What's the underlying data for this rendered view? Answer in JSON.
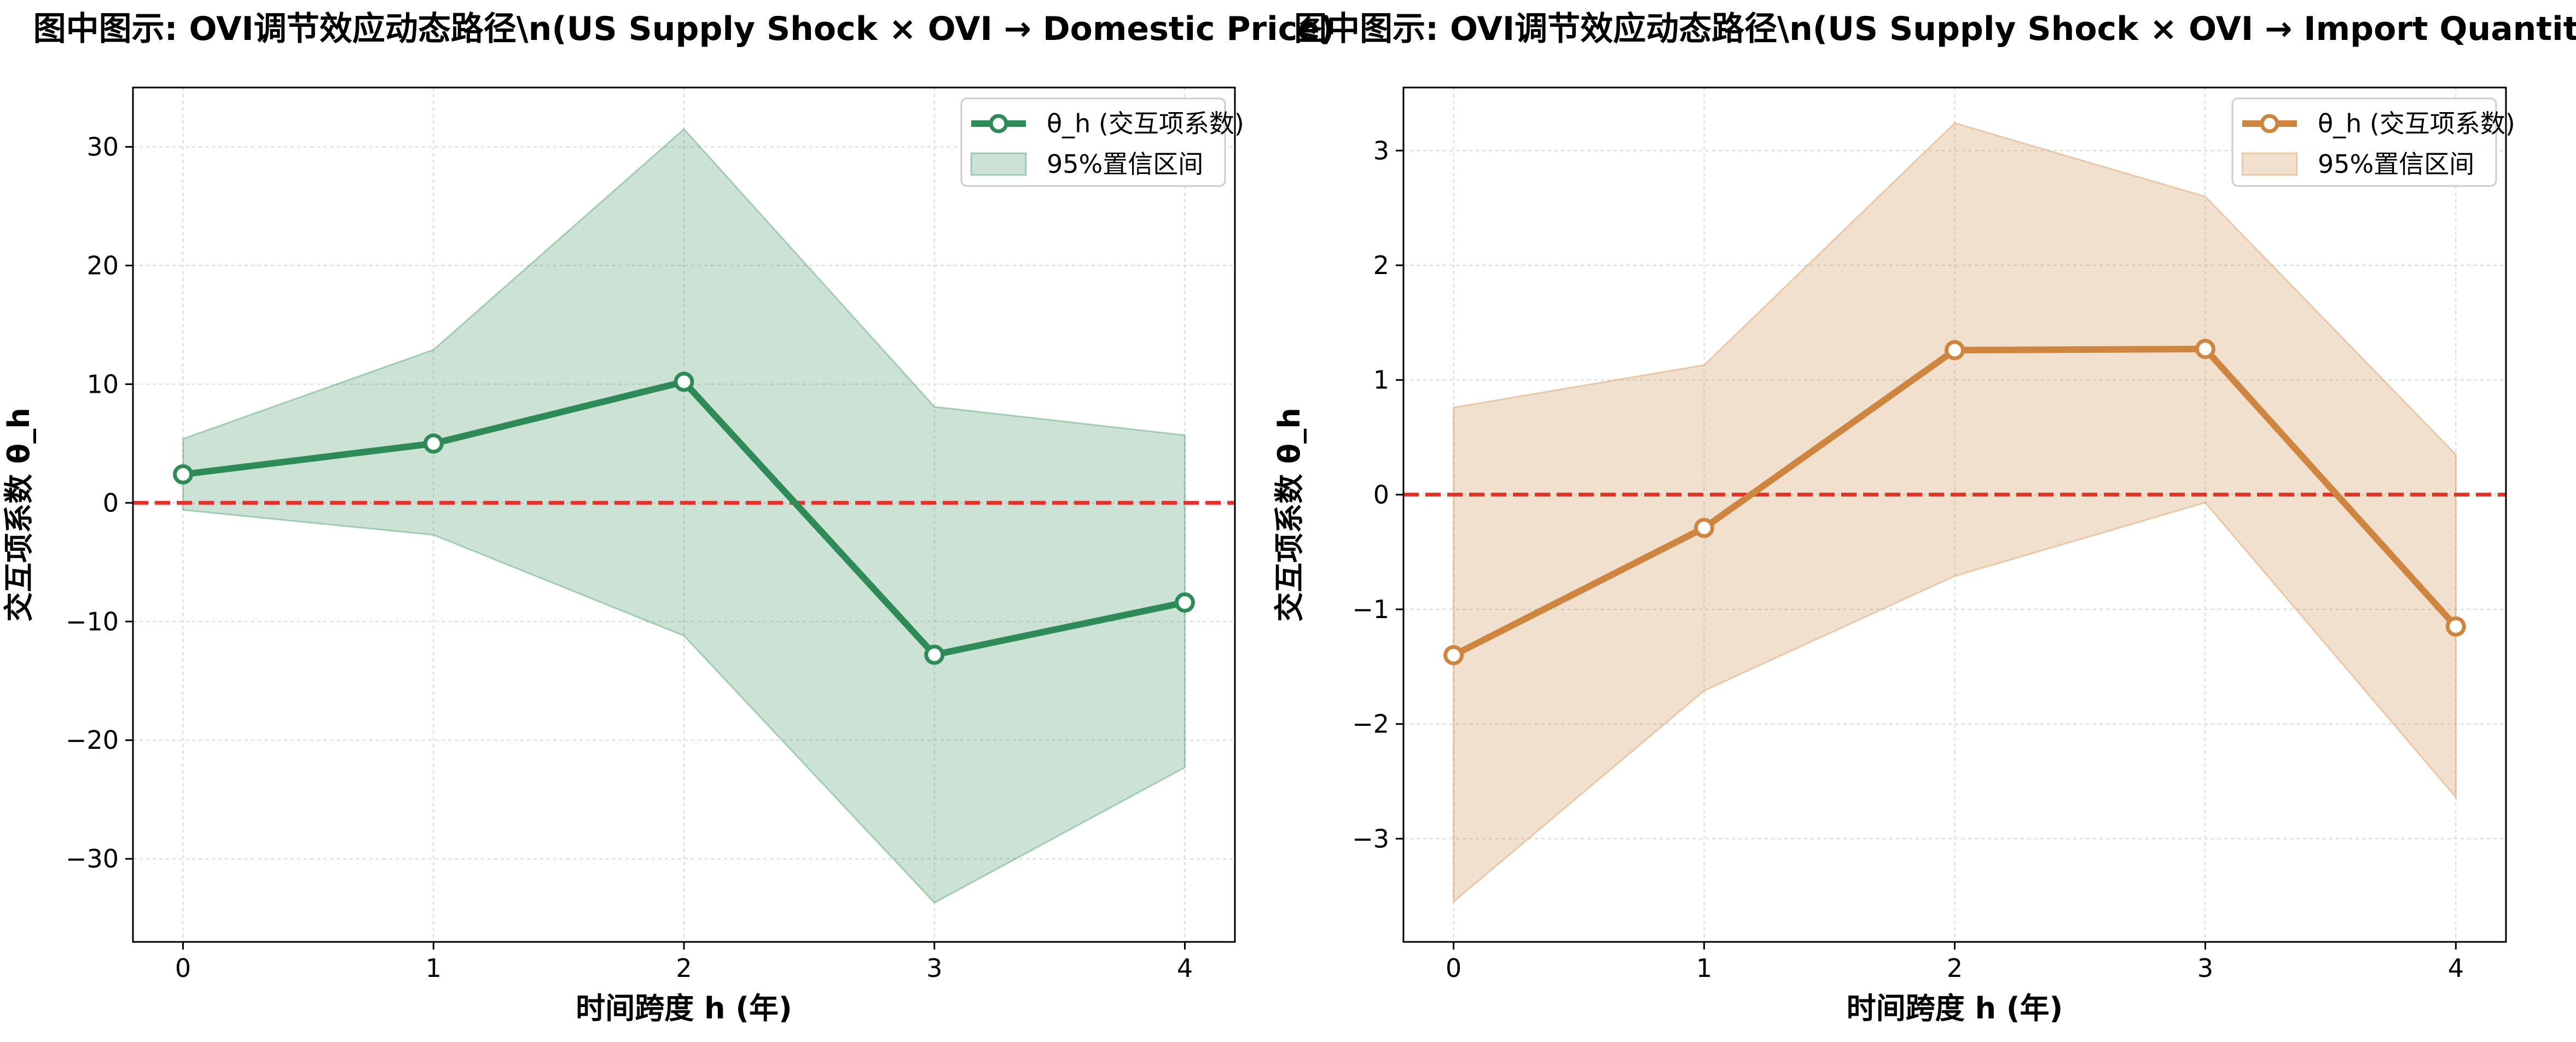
{
  "chart_data": [
    {
      "type": "line",
      "title": "图中图示: OVI调节效应动态路径\\n(US Supply Shock × OVI → Domestic Price)",
      "xlabel": "时间跨度 h (年)",
      "ylabel": "交互项系数 θ_h",
      "x": [
        0,
        1,
        2,
        3,
        4
      ],
      "xlim": [
        -0.2,
        4.2
      ],
      "ylim": [
        -37,
        35
      ],
      "xticks": [
        0,
        1,
        2,
        3,
        4
      ],
      "yticks": [
        -30,
        -20,
        -10,
        0,
        10,
        20,
        30
      ],
      "grid": true,
      "legend_position": "top-right",
      "reference_line": {
        "y": 0,
        "color": "#e8302a",
        "style": "dashed"
      },
      "series": [
        {
          "name": "θ_h (交互项系数)",
          "values": [
            2.4,
            5.0,
            10.2,
            -12.8,
            -8.4
          ],
          "color": "#2e8b57",
          "marker": "circle-open"
        }
      ],
      "band": {
        "name": "95%置信区间",
        "lower": [
          -0.6,
          -2.7,
          -11.2,
          -33.7,
          -22.3
        ],
        "upper": [
          5.4,
          12.9,
          31.5,
          8.1,
          5.7
        ],
        "color": "#2e8b57"
      }
    },
    {
      "type": "line",
      "title": "图中图示: OVI调节效应动态路径\\n(US Supply Shock × OVI → Import Quantity)",
      "xlabel": "时间跨度 h (年)",
      "ylabel": "交互项系数 θ_h",
      "x": [
        0,
        1,
        2,
        3,
        4
      ],
      "xlim": [
        -0.2,
        4.2
      ],
      "ylim": [
        -3.9,
        3.55
      ],
      "xticks": [
        0,
        1,
        2,
        3,
        4
      ],
      "yticks": [
        -3,
        -2,
        -1,
        0,
        1,
        2,
        3
      ],
      "grid": true,
      "legend_position": "top-right",
      "reference_line": {
        "y": 0,
        "color": "#e8302a",
        "style": "dashed"
      },
      "series": [
        {
          "name": "θ_h (交互项系数)",
          "values": [
            -1.4,
            -0.29,
            1.26,
            1.27,
            -1.15
          ],
          "color": "#cd853f",
          "marker": "circle-open"
        }
      ],
      "band": {
        "name": "95%置信区间",
        "lower": [
          -3.55,
          -1.71,
          -0.71,
          -0.07,
          -2.64
        ],
        "upper": [
          0.76,
          1.13,
          3.24,
          2.6,
          0.35
        ],
        "color": "#cd853f"
      }
    }
  ]
}
